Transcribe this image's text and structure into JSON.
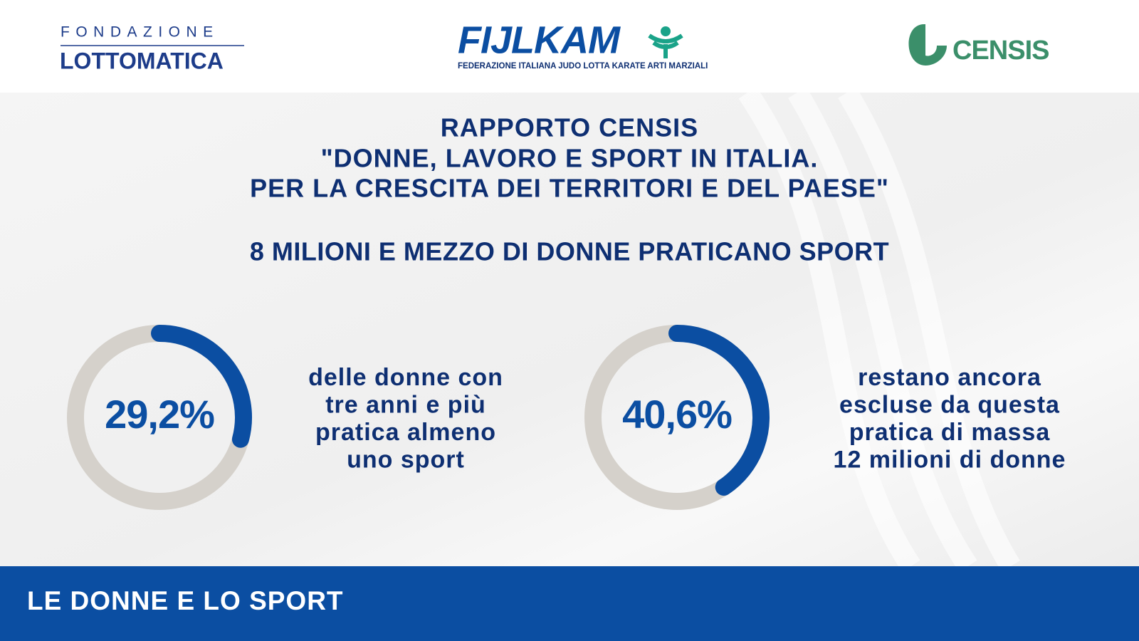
{
  "header": {
    "logo_left_top": "FONDAZIONE",
    "logo_left_bottom": "LOTTOMATICA",
    "logo_center": "FIJLKAM",
    "logo_center_sub": "FEDERAZIONE ITALIANA JUDO LOTTA KARATE ARTI MARZIALI",
    "logo_right": "CENSIS"
  },
  "title": [
    "RAPPORTO CENSIS",
    "\"DONNE, LAVORO E SPORT IN ITALIA.",
    "PER LA CRESCITA DEI TERRITORI E DEL PAESE\""
  ],
  "subtitle": "8 MILIONI E MEZZO DI DONNE PRATICANO SPORT",
  "chart_data": [
    {
      "type": "gauge",
      "value": 29.2,
      "value_label": "29,2%",
      "ylim": [
        0,
        100
      ],
      "color": "#0b4ea2",
      "track_color": "#d5d1cb",
      "caption": [
        "delle donne con",
        "tre anni e più",
        "pratica almeno",
        "uno sport"
      ]
    },
    {
      "type": "gauge",
      "value": 40.6,
      "value_label": "40,6%",
      "ylim": [
        0,
        100
      ],
      "color": "#0b4ea2",
      "track_color": "#d5d1cb",
      "caption": [
        "restano ancora",
        "escluse da questa",
        "pratica di massa",
        "12 milioni di donne"
      ]
    }
  ],
  "footer": "LE DONNE E LO SPORT"
}
